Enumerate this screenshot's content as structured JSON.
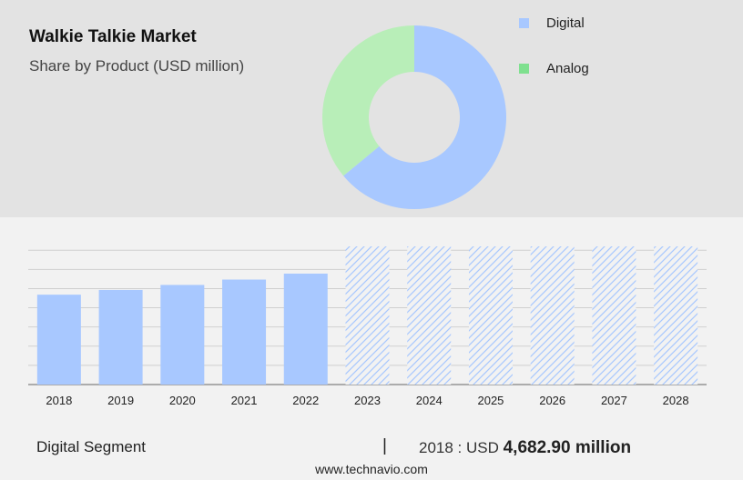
{
  "header": {
    "title": "Walkie Talkie Market",
    "subtitle": "Share by Product (USD million)"
  },
  "legend": {
    "items": [
      {
        "label": "Digital",
        "color": "#a8c8ff"
      },
      {
        "label": "Analog",
        "color": "#7fe08f"
      }
    ]
  },
  "chart_data": [
    {
      "type": "pie",
      "variant": "donut",
      "slices": [
        {
          "label": "Digital",
          "value": 64,
          "color": "#a8c8ff"
        },
        {
          "label": "Analog",
          "value": 36,
          "color": "#b8eeb8"
        }
      ]
    },
    {
      "type": "bar",
      "categories": [
        "2018",
        "2019",
        "2020",
        "2021",
        "2022",
        "2023",
        "2024",
        "2025",
        "2026",
        "2027",
        "2028"
      ],
      "values": [
        4682.9,
        4930,
        5190,
        5470,
        5780,
        null,
        null,
        null,
        null,
        null,
        null
      ],
      "forecast_categories": [
        "2023",
        "2024",
        "2025",
        "2026",
        "2027",
        "2028"
      ],
      "ylim": [
        0,
        7200
      ],
      "grid": true,
      "bar_color": "#a8c8ff",
      "forecast_style": "hatched"
    }
  ],
  "footer": {
    "segment": "Digital Segment",
    "divider": "|",
    "value_prefix": "2018 : USD ",
    "value_bold": "4,682.90 million",
    "source": "www.technavio.com"
  }
}
